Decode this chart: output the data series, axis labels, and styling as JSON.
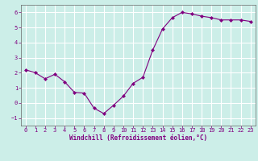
{
  "x": [
    0,
    1,
    2,
    3,
    4,
    5,
    6,
    7,
    8,
    9,
    10,
    11,
    12,
    13,
    14,
    15,
    16,
    17,
    18,
    19,
    20,
    21,
    22,
    23
  ],
  "y": [
    2.2,
    2.0,
    1.6,
    1.9,
    1.4,
    0.7,
    0.65,
    -0.35,
    -0.7,
    -0.15,
    0.45,
    1.3,
    1.7,
    3.5,
    4.9,
    5.65,
    6.0,
    5.9,
    5.75,
    5.65,
    5.5,
    5.5,
    5.5,
    5.4
  ],
  "line_color": "#800080",
  "marker": "D",
  "marker_size": 2.0,
  "bg_color": "#cceee8",
  "grid_color": "#aaddcc",
  "xlabel": "Windchill (Refroidissement éolien,°C)",
  "xlabel_color": "#800080",
  "tick_color": "#800080",
  "ylim": [
    -1.5,
    6.5
  ],
  "xlim": [
    -0.5,
    23.5
  ],
  "yticks": [
    -1,
    0,
    1,
    2,
    3,
    4,
    5,
    6
  ],
  "xticks": [
    0,
    1,
    2,
    3,
    4,
    5,
    6,
    7,
    8,
    9,
    10,
    11,
    12,
    13,
    14,
    15,
    16,
    17,
    18,
    19,
    20,
    21,
    22,
    23
  ],
  "tick_fontsize": 5.0,
  "xlabel_fontsize": 5.5,
  "xlabel_fontweight": "bold"
}
